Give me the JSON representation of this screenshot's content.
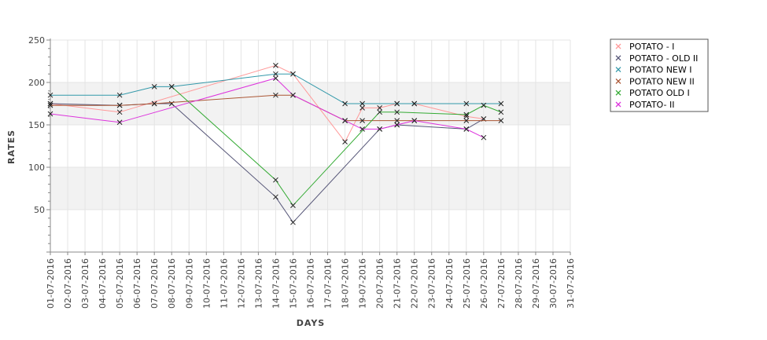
{
  "chart_data": {
    "type": "line",
    "title": "",
    "xlabel": "DAYS",
    "ylabel": "RATES",
    "ylim": [
      0,
      250
    ],
    "yticks": [
      50,
      100,
      150,
      200,
      250
    ],
    "grid": true,
    "legend_position": "top-right",
    "x_ticks": [
      "01-07-2016",
      "02-07-2016",
      "03-07-2016",
      "04-07-2016",
      "05-07-2016",
      "06-07-2016",
      "07-07-2016",
      "08-07-2016",
      "09-07-2016",
      "10-07-2016",
      "11-07-2016",
      "12-07-2016",
      "13-07-2016",
      "14-07-2016",
      "15-07-2016",
      "16-07-2016",
      "17-07-2016",
      "18-07-2016",
      "19-07-2016",
      "20-07-2016",
      "21-07-2016",
      "22-07-2016",
      "23-07-2016",
      "24-07-2016",
      "25-07-2016",
      "26-07-2016",
      "27-07-2016",
      "28-07-2016",
      "29-07-2016",
      "30-07-2016",
      "31-07-2016"
    ],
    "series": [
      {
        "name": "POTATO - I",
        "color": "#ff9999",
        "x": [
          "01-07-2016",
          "05-07-2016",
          "14-07-2016",
          "15-07-2016",
          "18-07-2016",
          "19-07-2016",
          "20-07-2016",
          "21-07-2016",
          "22-07-2016",
          "25-07-2016",
          "26-07-2016"
        ],
        "y": [
          175,
          165,
          220,
          210,
          130,
          170,
          170,
          175,
          175,
          160,
          157
        ]
      },
      {
        "name": "POTATO - OLD II",
        "color": "#555577",
        "x": [
          "01-07-2016",
          "05-07-2016",
          "07-07-2016",
          "08-07-2016",
          "14-07-2016",
          "15-07-2016",
          "20-07-2016",
          "21-07-2016",
          "25-07-2016",
          "26-07-2016"
        ],
        "y": [
          175,
          173,
          175,
          175,
          65,
          35,
          145,
          150,
          145,
          157
        ]
      },
      {
        "name": "POTATO NEW I",
        "color": "#3399aa",
        "x": [
          "01-07-2016",
          "05-07-2016",
          "07-07-2016",
          "08-07-2016",
          "14-07-2016",
          "15-07-2016",
          "18-07-2016",
          "19-07-2016",
          "21-07-2016",
          "22-07-2016",
          "25-07-2016",
          "27-07-2016"
        ],
        "y": [
          185,
          185,
          195,
          195,
          210,
          210,
          175,
          175,
          175,
          175,
          175,
          175
        ]
      },
      {
        "name": "POTATO NEW II",
        "color": "#aa5533",
        "x": [
          "01-07-2016",
          "05-07-2016",
          "07-07-2016",
          "14-07-2016",
          "15-07-2016",
          "18-07-2016",
          "19-07-2016",
          "21-07-2016",
          "22-07-2016",
          "25-07-2016",
          "27-07-2016"
        ],
        "y": [
          173,
          173,
          175,
          185,
          185,
          155,
          155,
          155,
          155,
          155,
          155
        ]
      },
      {
        "name": "POTATO OLD I",
        "color": "#33aa33",
        "x": [
          "08-07-2016",
          "14-07-2016",
          "15-07-2016",
          "20-07-2016",
          "21-07-2016",
          "25-07-2016",
          "26-07-2016",
          "27-07-2016"
        ],
        "y": [
          195,
          85,
          55,
          165,
          165,
          162,
          173,
          165
        ]
      },
      {
        "name": "POTATO- II",
        "color": "#dd33dd",
        "x": [
          "01-07-2016",
          "05-07-2016",
          "14-07-2016",
          "15-07-2016",
          "18-07-2016",
          "19-07-2016",
          "20-07-2016",
          "21-07-2016",
          "22-07-2016",
          "25-07-2016",
          "26-07-2016"
        ],
        "y": [
          163,
          153,
          205,
          185,
          155,
          145,
          145,
          150,
          155,
          145,
          135
        ]
      }
    ]
  }
}
